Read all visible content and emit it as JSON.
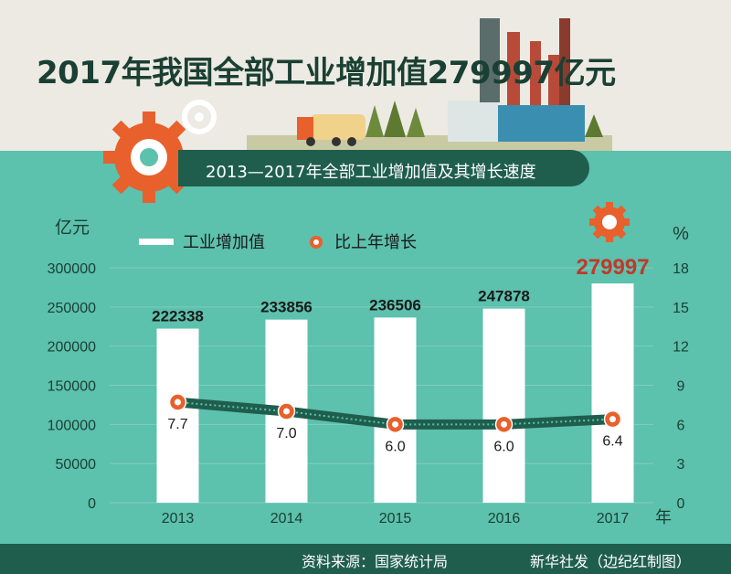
{
  "title": "2017年我国全部工业增加值279997亿元",
  "subtitle": "2013—2017年全部工业增加值及其增长速度",
  "source": "资料来源：国家统计局",
  "credit": "新华社发（边纪红制图）",
  "colors": {
    "background": "#5cc1ad",
    "bar": "#ffffff",
    "line": "#1f5e4d",
    "marker": "#e8602c",
    "highlight": "#c0392b"
  },
  "chart_data": {
    "type": "bar",
    "categories": [
      "2013",
      "2014",
      "2015",
      "2016",
      "2017"
    ],
    "x_unit": "年",
    "y_left_unit": "亿元",
    "y_right_unit": "%",
    "ylim_left": [
      0,
      300000
    ],
    "ylim_right": [
      0,
      18
    ],
    "y_left_ticks": [
      "0",
      "50000",
      "100000",
      "150000",
      "200000",
      "250000",
      "300000"
    ],
    "y_right_ticks": [
      "0",
      "3",
      "6",
      "9",
      "12",
      "15",
      "18"
    ],
    "legend": {
      "bar_label": "工业增加值",
      "line_label": "比上年增长",
      "placement": "top-left"
    },
    "series": [
      {
        "name": "工业增加值",
        "type": "bar",
        "axis": "left",
        "values": [
          222338,
          233856,
          236506,
          247878,
          279997
        ],
        "labels": [
          "222338",
          "233856",
          "236506",
          "247878",
          "279997"
        ]
      },
      {
        "name": "比上年增长",
        "type": "line",
        "axis": "right",
        "values": [
          7.7,
          7.0,
          6.0,
          6.0,
          6.4
        ],
        "labels": [
          "7.7",
          "7.0",
          "6.0",
          "6.0",
          "6.4"
        ]
      }
    ],
    "grid": true
  }
}
